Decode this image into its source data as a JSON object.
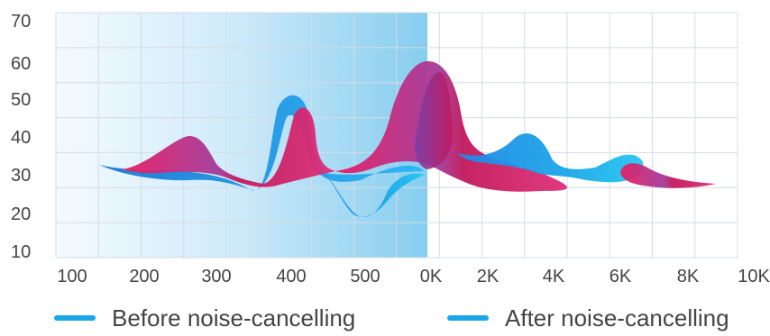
{
  "chart_data": {
    "type": "area",
    "title": "",
    "xlabel": "",
    "ylabel": "",
    "y_ticks": [
      "70",
      "60",
      "50",
      "40",
      "30",
      "20",
      "10"
    ],
    "x_ticks": [
      "100",
      "200",
      "300",
      "400",
      "500",
      "0K",
      "2K",
      "4K",
      "6K",
      "8K",
      "10K"
    ],
    "ylim": [
      10,
      70
    ],
    "grid": true,
    "highlight_range": [
      "100",
      "0K"
    ],
    "legend": "bottom",
    "series": [
      {
        "name": "Before noise-cancelling",
        "color": "#1aa7e8",
        "points": [
          [
            "150",
            33
          ],
          [
            "200",
            31
          ],
          [
            "250",
            31
          ],
          [
            "300",
            30
          ],
          [
            "330",
            29
          ],
          [
            "360",
            31
          ],
          [
            "390",
            46
          ],
          [
            "420",
            45
          ],
          [
            "440",
            33
          ],
          [
            "480",
            24
          ],
          [
            "500",
            22
          ],
          [
            "550",
            26
          ],
          [
            "600",
            40
          ],
          [
            "700",
            50
          ],
          [
            "2K",
            48
          ],
          [
            "3K",
            44
          ],
          [
            "4K",
            36
          ],
          [
            "5K",
            33
          ],
          [
            "6K",
            37
          ],
          [
            "7K",
            35
          ],
          [
            "8K",
            32
          ]
        ]
      },
      {
        "name": "After noise-cancelling",
        "color": "#1aa7e8",
        "points": [
          [
            "200",
            33
          ],
          [
            "250",
            38
          ],
          [
            "270",
            40
          ],
          [
            "300",
            33
          ],
          [
            "350",
            31
          ],
          [
            "400",
            36
          ],
          [
            "420",
            44
          ],
          [
            "450",
            34
          ],
          [
            "500",
            31
          ],
          [
            "550",
            33
          ],
          [
            "600",
            40
          ],
          [
            "0K",
            55
          ],
          [
            "700",
            45
          ],
          [
            "1.5K",
            36
          ],
          [
            "2K",
            35
          ],
          [
            "4K",
            29
          ],
          [
            "5K",
            31
          ],
          [
            "6K",
            34
          ],
          [
            "7K",
            31
          ],
          [
            "8K",
            30
          ],
          [
            "9K",
            31
          ]
        ]
      }
    ]
  }
}
